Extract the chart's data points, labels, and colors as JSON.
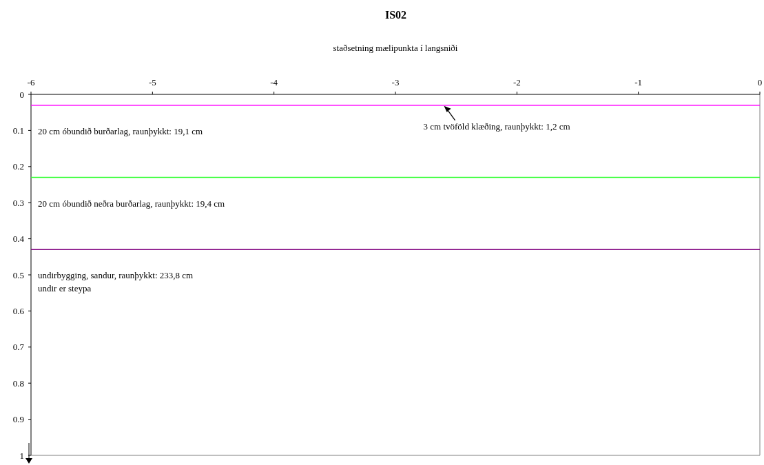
{
  "chart_data": {
    "type": "line",
    "title": "IS02",
    "xlabel": "staðsetning mælipunkta í langsniði",
    "xlim": [
      -6,
      0
    ],
    "xticks": [
      -6,
      -5,
      -4,
      -3,
      -2,
      -1,
      0
    ],
    "ylim": [
      1,
      0
    ],
    "yticks": [
      0,
      0.1,
      0.2,
      0.3,
      0.4,
      0.5,
      0.6,
      0.7,
      0.8,
      0.9,
      1
    ],
    "grid": false,
    "ref_lines": [
      {
        "axis": "y",
        "value": 0.03,
        "color": "#ff00ff",
        "line_style": "solid"
      },
      {
        "axis": "y",
        "value": 0.23,
        "color": "#33ff33",
        "line_style": "solid"
      },
      {
        "axis": "y",
        "value": 0.43,
        "color": "#800080",
        "line_style": "solid"
      }
    ],
    "annotations": [
      {
        "text": "3 cm tvöföld klæðing, raunþykkt: 1,2 cm",
        "x": -2.6,
        "y": 0.03
      },
      "20 cm óbundið burðarlag, raunþykkt: 19,1 cm",
      "20 cm óbundið neðra burðarlag, raunþykkt: 19,4 cm",
      "undirbygging, sandur, raunþykkt: 233,8 cm\nundir er steypa"
    ]
  }
}
